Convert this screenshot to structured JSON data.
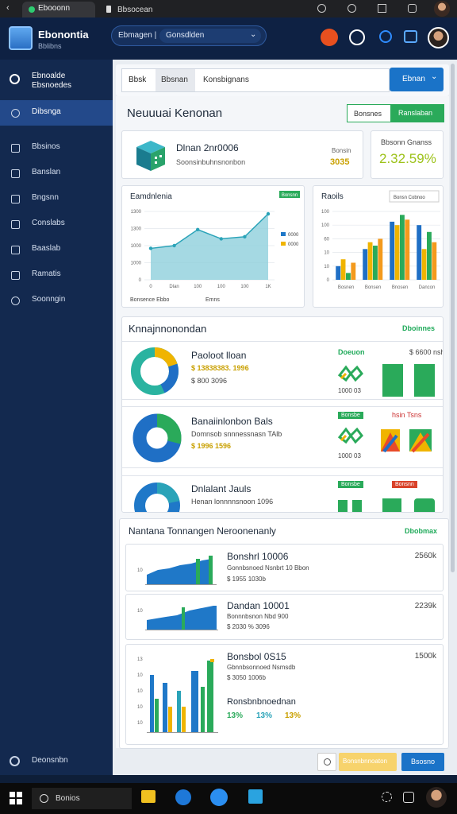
{
  "browser": {
    "tabs": [
      "Ebooonn",
      "Bbsocean"
    ]
  },
  "header": {
    "app_name": "Ebonontia",
    "app_sub": "Bblibns",
    "search_left": "Ebmagen |",
    "search_right": "Gonsdlden"
  },
  "sidebar": {
    "top_title": "Ebnoalde",
    "top_sub": "Ebsnoedes",
    "items": [
      "Dibsnga",
      "Bbsinos",
      "Banslan",
      "Bngsnn",
      "Conslabs",
      "Baaslab",
      "Ramatis",
      "Soonngin"
    ],
    "bottom": "Deonsnbn"
  },
  "toolbar": {
    "tabs": [
      "Bbsk",
      "Bbsnan"
    ],
    "search": "Konsbignans",
    "button": "Ebnan"
  },
  "page": {
    "title": "Neuuuai Kenonan",
    "buttons": [
      "Bonsnes",
      "Ranslaban"
    ]
  },
  "kpi": [
    {
      "title": "Dlnan 2nr0006",
      "sub": "Soonsinbuhnsnonbon",
      "label": "Bonsin",
      "value": "3035"
    },
    {
      "title": "Bbsonn Gnanss",
      "value": "2.32.59%"
    }
  ],
  "chart_data": [
    {
      "type": "area",
      "title": "Eamdnlenia",
      "badge": "Bonsnn",
      "categories": [
        "0",
        "Dlan",
        "100",
        "100",
        "100",
        "1K"
      ],
      "values": [
        460,
        500,
        735,
        600,
        630,
        965
      ],
      "color": "#2aa3b8",
      "fill": "#8fd0dc",
      "ylim": [
        0,
        1000
      ],
      "yticks": [
        0,
        {
          "value": 250,
          "label": "1000"
        },
        {
          "value": 500,
          "label": "1000"
        },
        {
          "value": 750,
          "label": "1300"
        },
        {
          "value": 1000,
          "label": "1300"
        }
      ],
      "grid": true,
      "legend": [
        {
          "label": "0000",
          "color": "#1f78c8"
        },
        {
          "label": "0000",
          "color": "#f0b400"
        }
      ],
      "footer": [
        "Bonsence Ebbo",
        "Emns"
      ]
    },
    {
      "type": "bar",
      "title": "Raoils",
      "dropdown": "Bonsn Cobnoo",
      "categories": [
        "Bosnen",
        "Bonsen",
        "Bnosen",
        "Dancon"
      ],
      "series": [
        {
          "color": "#1f6fc5",
          "values": [
            20,
            45,
            85,
            80
          ]
        },
        {
          "color": "#f0b400",
          "values": [
            30,
            55,
            80,
            45
          ]
        },
        {
          "color": "#2aaa5a",
          "values": [
            10,
            50,
            95,
            70
          ]
        },
        {
          "color": "#f39a1d",
          "values": [
            25,
            60,
            88,
            55
          ]
        }
      ],
      "ylim": [
        0,
        100
      ],
      "yticks": [
        0,
        {
          "value": 20,
          "label": "10"
        },
        {
          "value": 40,
          "label": "10"
        },
        60,
        {
          "value": 80,
          "label": "100"
        },
        {
          "value": 100,
          "label": "100"
        }
      ],
      "grid": true
    }
  ],
  "section1": {
    "title": "Knnajnnonondan",
    "link": "Dboinnes",
    "items": [
      {
        "title": "Paoloot lloan",
        "line1": "$ 13838383. 1996",
        "line2": "$ 800 3096",
        "tag": "Doeuon",
        "side": "$ 6600 nsh",
        "foot": "1000 03"
      },
      {
        "title": "Banaiinlonbon Bals",
        "line1": "Domnsob snnnessnasn  TAlb",
        "line2": "$ 1996  1596",
        "tag": "Bonsbe",
        "side": "hsin Tsns",
        "foot": "1000 03"
      },
      {
        "title": "Dnlalant Jauls",
        "line1": "Henan lonnnnsnoon 1096",
        "tag": "Bonsbe",
        "side": "Bonsnn"
      }
    ]
  },
  "section2": {
    "title": "Nantana Tonnangen Neroonenanly",
    "link": "Dbobmax",
    "items": [
      {
        "title": "Bonshrl 10006",
        "line1": "Gonnbsnoed Nsnbrt 10 Bbon",
        "line2": "$ 1955 1030b",
        "amount": "2560k"
      },
      {
        "title": "Dandan 10001",
        "line1": "Bonnnbsnon Nbd 900",
        "line2": "$ 2030 % 3096",
        "amount": "2239k"
      },
      {
        "title": "Bonsbol 0S15",
        "line1": "Gbnnbsonnoed Nsmsdb",
        "line2": "$ 3050 1006b",
        "sub": "Ronsbnbnoednan",
        "pcts": [
          "13%",
          "13%",
          "13%"
        ],
        "amount": "1500k"
      }
    ]
  },
  "footer": {
    "buttons": [
      "Bonsnbnnoaton",
      "Bsosno"
    ]
  },
  "taskbar": {
    "search": "Bonios"
  }
}
